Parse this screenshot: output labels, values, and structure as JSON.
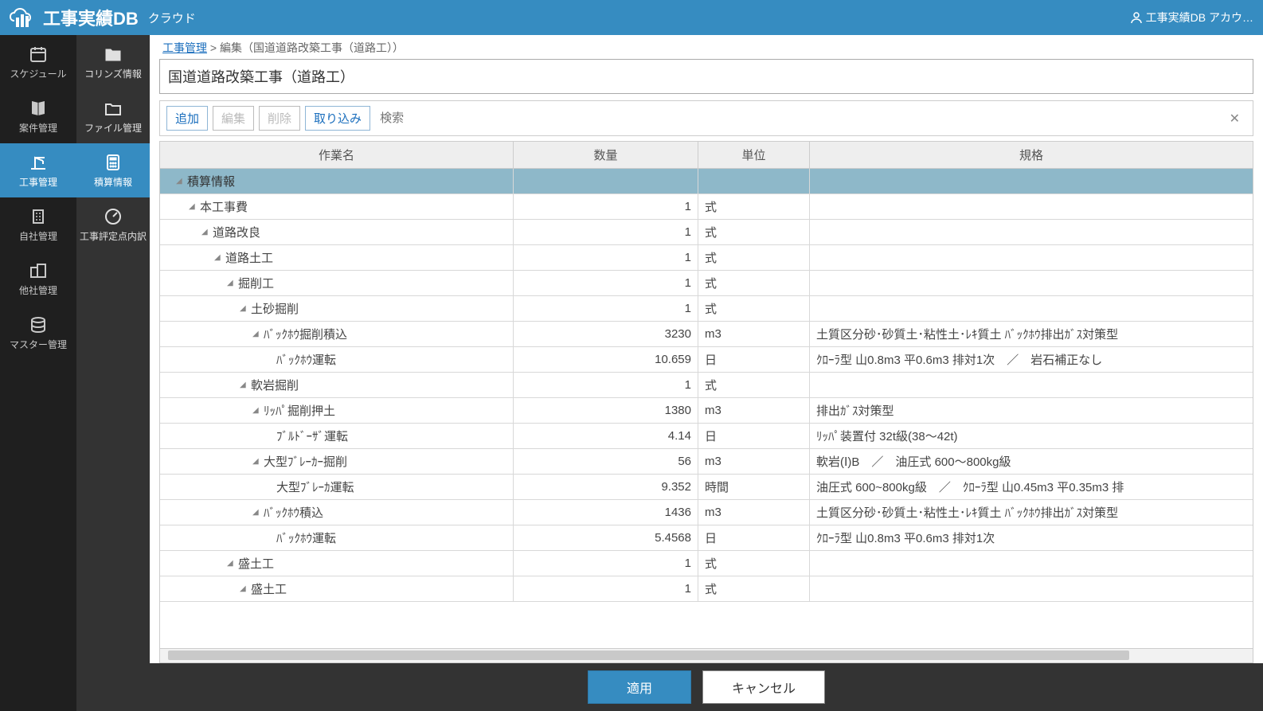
{
  "header": {
    "title_main": "工事実績DB",
    "title_sub": "クラウド",
    "account_label": "工事実績DB アカウ…"
  },
  "sidebar_primary": {
    "items": [
      {
        "label": "スケジュール"
      },
      {
        "label": "案件管理"
      },
      {
        "label": "工事管理"
      },
      {
        "label": "自社管理"
      },
      {
        "label": "他社管理"
      },
      {
        "label": "マスター管理"
      }
    ]
  },
  "sidebar_secondary": {
    "items": [
      {
        "label": "コリンズ情報"
      },
      {
        "label": "ファイル管理"
      },
      {
        "label": "積算情報"
      },
      {
        "label": "工事評定点内訳"
      }
    ]
  },
  "breadcrumb": {
    "link": "工事管理",
    "sep": " > ",
    "current": "編集（国道道路改築工事（道路工））"
  },
  "page_title": "国道道路改築工事（道路工）",
  "toolbar": {
    "add": "追加",
    "edit": "編集",
    "delete": "削除",
    "import": "取り込み",
    "search_placeholder": "検索"
  },
  "grid": {
    "columns": {
      "name": "作業名",
      "qty": "数量",
      "unit": "単位",
      "spec": "規格"
    },
    "rows": [
      {
        "indent": 0,
        "toggle": true,
        "highlight": true,
        "name": "積算情報",
        "qty": "",
        "unit": "",
        "spec": ""
      },
      {
        "indent": 1,
        "toggle": true,
        "name": "本工事費",
        "qty": "1",
        "unit": "式",
        "spec": ""
      },
      {
        "indent": 2,
        "toggle": true,
        "name": "道路改良",
        "qty": "1",
        "unit": "式",
        "spec": ""
      },
      {
        "indent": 3,
        "toggle": true,
        "name": "道路土工",
        "qty": "1",
        "unit": "式",
        "spec": ""
      },
      {
        "indent": 4,
        "toggle": true,
        "name": "掘削工",
        "qty": "1",
        "unit": "式",
        "spec": ""
      },
      {
        "indent": 5,
        "toggle": true,
        "name": "土砂掘削",
        "qty": "1",
        "unit": "式",
        "spec": ""
      },
      {
        "indent": 6,
        "toggle": true,
        "name": "ﾊﾞｯｸﾎｳ掘削積込",
        "qty": "3230",
        "unit": "m3",
        "spec": "土質区分砂･砂質土･粘性土･ﾚｷ質土 ﾊﾞｯｸﾎｳ排出ｶﾞｽ対策型"
      },
      {
        "indent": 7,
        "toggle": false,
        "name": "ﾊﾞｯｸﾎｳ運転",
        "qty": "10.659",
        "unit": "日",
        "spec": "ｸﾛｰﾗ型 山0.8m3 平0.6m3 排対1次　／　岩石補正なし"
      },
      {
        "indent": 5,
        "toggle": true,
        "name": "軟岩掘削",
        "qty": "1",
        "unit": "式",
        "spec": ""
      },
      {
        "indent": 6,
        "toggle": true,
        "name": "ﾘｯﾊﾟ掘削押土",
        "qty": "1380",
        "unit": "m3",
        "spec": "排出ｶﾞｽ対策型"
      },
      {
        "indent": 7,
        "toggle": false,
        "name": "ﾌﾞﾙﾄﾞｰｻﾞ運転",
        "qty": "4.14",
        "unit": "日",
        "spec": "ﾘｯﾊﾟ装置付 32t級(38～42t)"
      },
      {
        "indent": 6,
        "toggle": true,
        "name": "大型ﾌﾞﾚｰｶｰ掘削",
        "qty": "56",
        "unit": "m3",
        "spec": "軟岩(Ⅰ)B　／　油圧式 600～800kg級"
      },
      {
        "indent": 7,
        "toggle": false,
        "name": "大型ﾌﾞﾚｰｶ運転",
        "qty": "9.352",
        "unit": "時間",
        "spec": "油圧式 600~800kg級　／　ｸﾛｰﾗ型 山0.45m3 平0.35m3 排"
      },
      {
        "indent": 6,
        "toggle": true,
        "name": "ﾊﾞｯｸﾎｳ積込",
        "qty": "1436",
        "unit": "m3",
        "spec": "土質区分砂･砂質土･粘性土･ﾚｷ質土 ﾊﾞｯｸﾎｳ排出ｶﾞｽ対策型"
      },
      {
        "indent": 7,
        "toggle": false,
        "name": "ﾊﾞｯｸﾎｳ運転",
        "qty": "5.4568",
        "unit": "日",
        "spec": "ｸﾛｰﾗ型 山0.8m3 平0.6m3 排対1次"
      },
      {
        "indent": 4,
        "toggle": true,
        "name": "盛土工",
        "qty": "1",
        "unit": "式",
        "spec": ""
      },
      {
        "indent": 5,
        "toggle": true,
        "name": "盛土工",
        "qty": "1",
        "unit": "式",
        "spec": ""
      }
    ]
  },
  "footer": {
    "apply": "適用",
    "cancel": "キャンセル"
  }
}
